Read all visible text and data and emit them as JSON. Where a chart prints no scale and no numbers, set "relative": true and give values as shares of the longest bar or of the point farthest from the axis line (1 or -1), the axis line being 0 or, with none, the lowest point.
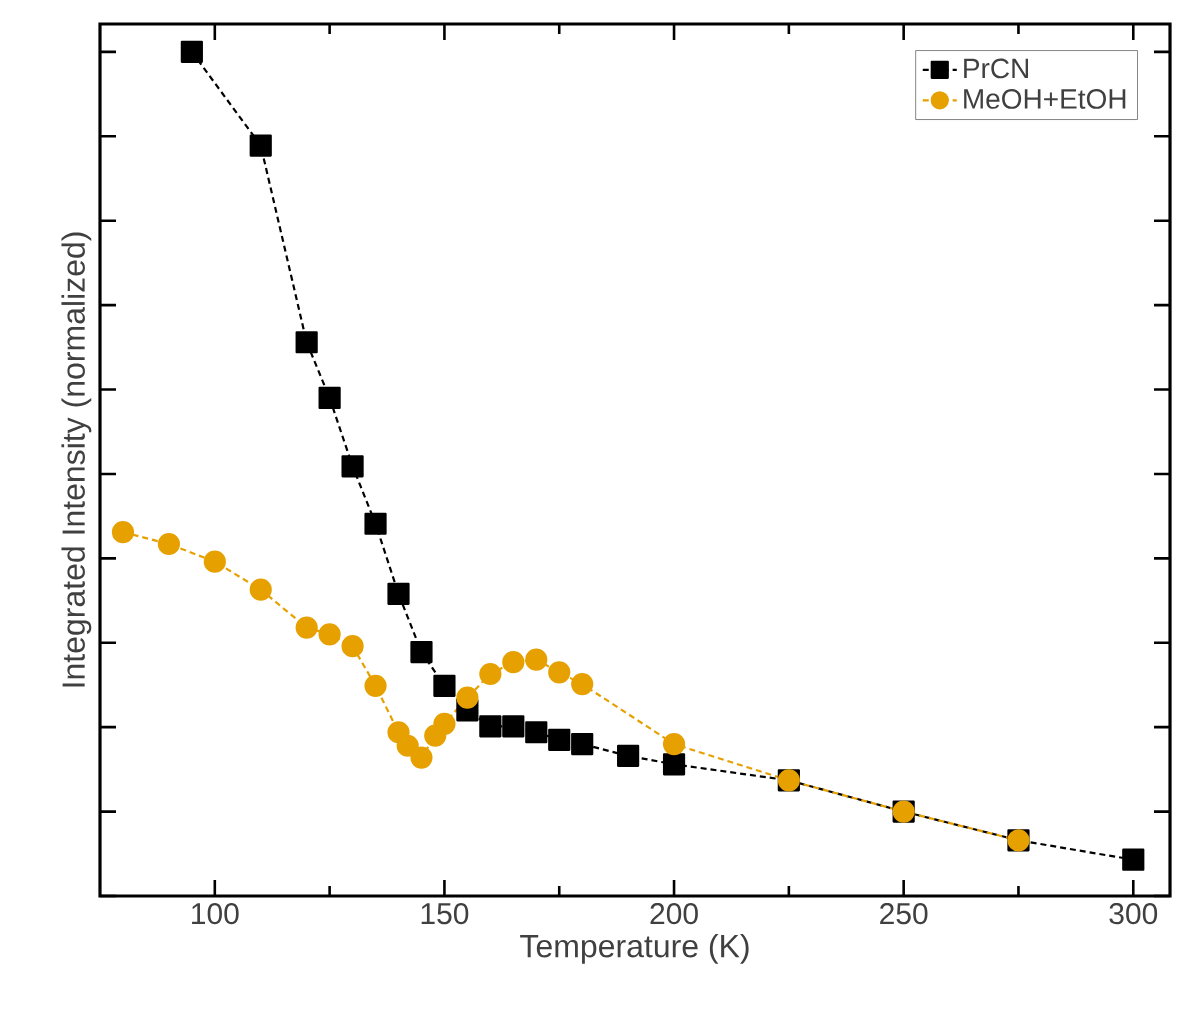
{
  "chart_data": {
    "type": "line",
    "xlabel": "Temperature (K)",
    "ylabel": "Integrated Intensity (normalized)",
    "relative": true,
    "xlim": [
      75,
      308
    ],
    "xticks": [
      100,
      150,
      200,
      250,
      300
    ],
    "tick_labels": "x",
    "legend": "top right",
    "line_style": "dashed",
    "series": [
      {
        "name": "PrCN",
        "color": "#000000",
        "marker": "square",
        "x": [
          95,
          110,
          120,
          125,
          130,
          135,
          140,
          145,
          150,
          155,
          160,
          165,
          170,
          175,
          180,
          190,
          200,
          225,
          250,
          275,
          300
        ],
        "values": [
          1.0,
          0.889,
          0.656,
          0.59,
          0.509,
          0.441,
          0.358,
          0.289,
          0.249,
          0.22,
          0.201,
          0.201,
          0.194,
          0.185,
          0.18,
          0.166,
          0.156,
          0.137,
          0.1,
          0.066,
          0.043
        ]
      },
      {
        "name": "MeOH+EtOH",
        "color": "#e6a000",
        "marker": "circle",
        "x": [
          80,
          90,
          100,
          110,
          120,
          125,
          130,
          135,
          140,
          142,
          145,
          148,
          150,
          155,
          160,
          165,
          170,
          175,
          180,
          200,
          225,
          250,
          275
        ],
        "values": [
          0.431,
          0.417,
          0.396,
          0.363,
          0.318,
          0.31,
          0.296,
          0.249,
          0.194,
          0.178,
          0.164,
          0.19,
          0.204,
          0.235,
          0.263,
          0.277,
          0.28,
          0.265,
          0.251,
          0.18,
          0.137,
          0.1,
          0.066
        ]
      }
    ]
  }
}
